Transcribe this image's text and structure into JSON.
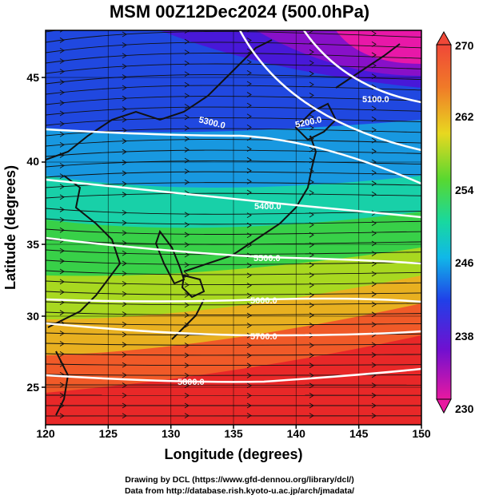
{
  "title": "MSM 00Z12Dec2024 (500.0hPa)",
  "axes": {
    "xlabel": "Longitude (degrees)",
    "ylabel": "Latitude  (degrees)",
    "x_range": [
      120,
      150
    ],
    "y_range": [
      22.5,
      47.5
    ],
    "x_ticks": [
      "120",
      "125",
      "130",
      "135",
      "140",
      "145",
      "150"
    ],
    "y_ticks": [
      "25",
      "30",
      "35",
      "40",
      "45"
    ]
  },
  "colorbar": {
    "labels": [
      "270",
      "262",
      "254",
      "246",
      "238",
      "230"
    ],
    "min": 230,
    "max": 270,
    "colors": [
      "#e8108f",
      "#8a10c8",
      "#2020e8",
      "#1c82ec",
      "#10d8d0",
      "#18d858",
      "#98e020",
      "#e8e020",
      "#f0a020",
      "#f04838",
      "#e82020"
    ]
  },
  "contours": [
    {
      "label": "5100.0"
    },
    {
      "label": "5200.0"
    },
    {
      "label": "5300.0"
    },
    {
      "label": "5400.0"
    },
    {
      "label": "5500.0"
    },
    {
      "label": "5600.0"
    },
    {
      "label": "5700.0"
    },
    {
      "label": "5800.0"
    }
  ],
  "credits": {
    "line1": "Drawing by DCL (https://www.gfd-dennou.org/library/dcl/)",
    "line2": "Data from http://database.rish.kyoto-u.ac.jp/arch/jmadata/"
  }
}
